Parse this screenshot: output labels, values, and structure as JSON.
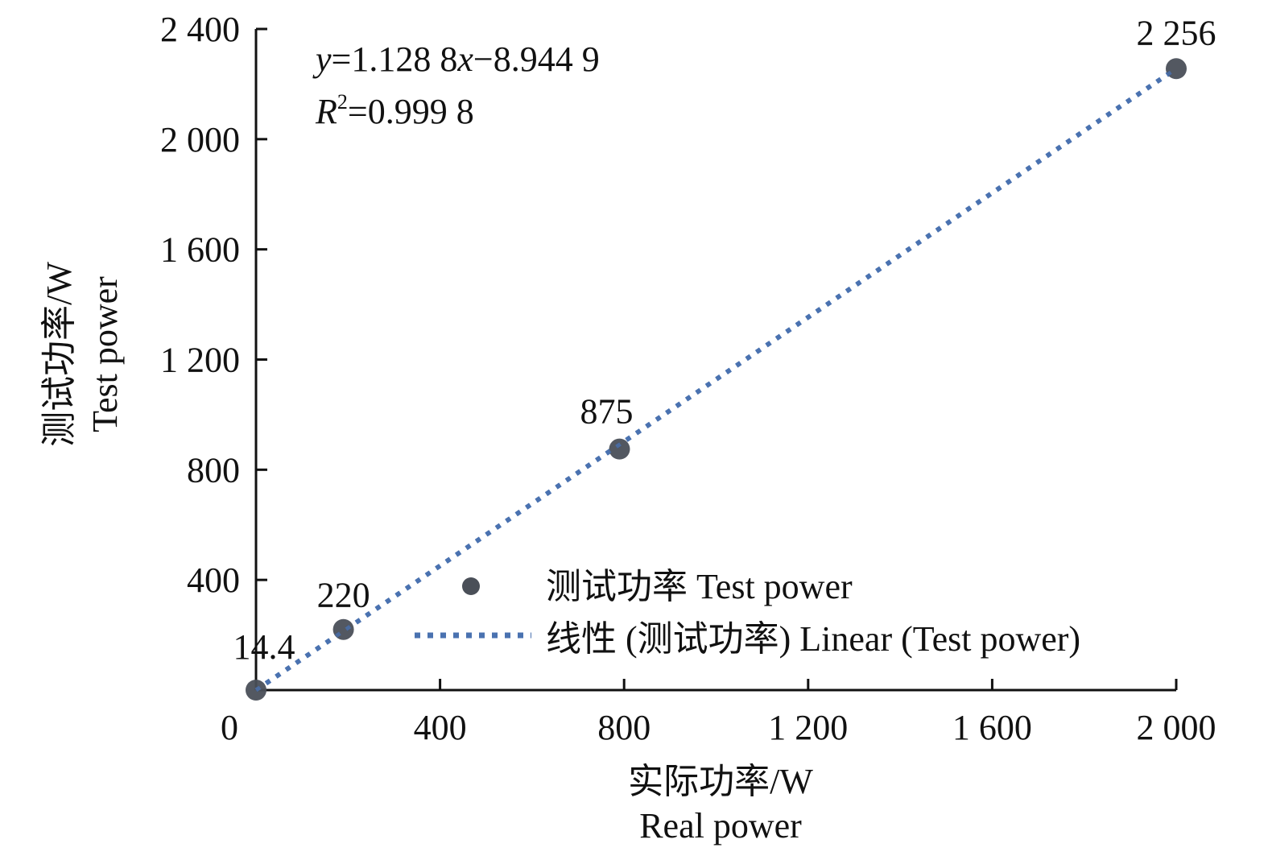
{
  "chart_data": {
    "type": "scatter",
    "title": "",
    "xlabel": "实际功率/W",
    "xlabel_en": "Real power",
    "ylabel": "测试功率/W",
    "ylabel_en": "Test power",
    "xlim": [
      0,
      2000
    ],
    "ylim": [
      0,
      2400
    ],
    "x_ticks": [
      0,
      400,
      800,
      1200,
      1600,
      2000
    ],
    "x_tick_labels": [
      "0",
      "400",
      "800",
      "1 200",
      "1 600",
      "2 000"
    ],
    "y_ticks": [
      400,
      800,
      1200,
      1600,
      2000,
      2400
    ],
    "y_tick_labels": [
      "400",
      "800",
      "1 200",
      "1 600",
      "2 000",
      "2 400"
    ],
    "grid": false,
    "series": [
      {
        "name": "测试功率 Test power",
        "x": [
          0,
          190,
          790,
          2000
        ],
        "y": [
          14.4,
          220,
          875,
          2256
        ],
        "labels": [
          "14.4",
          "220",
          "875",
          "2 256"
        ],
        "color": "#4a4f58"
      },
      {
        "name": "线性 (测试功率) Linear (Test power)",
        "type": "line",
        "style": "dotted",
        "x": [
          0,
          2000
        ],
        "y": [
          0,
          2256
        ],
        "color": "#4a72b0"
      }
    ],
    "trendline": {
      "equation_parts": [
        "y",
        "=1.128 8",
        "x",
        "−8.944 9"
      ],
      "r2_parts": [
        "R",
        "2",
        "=0.999 8"
      ]
    },
    "legend_placement": "bottom-right"
  }
}
